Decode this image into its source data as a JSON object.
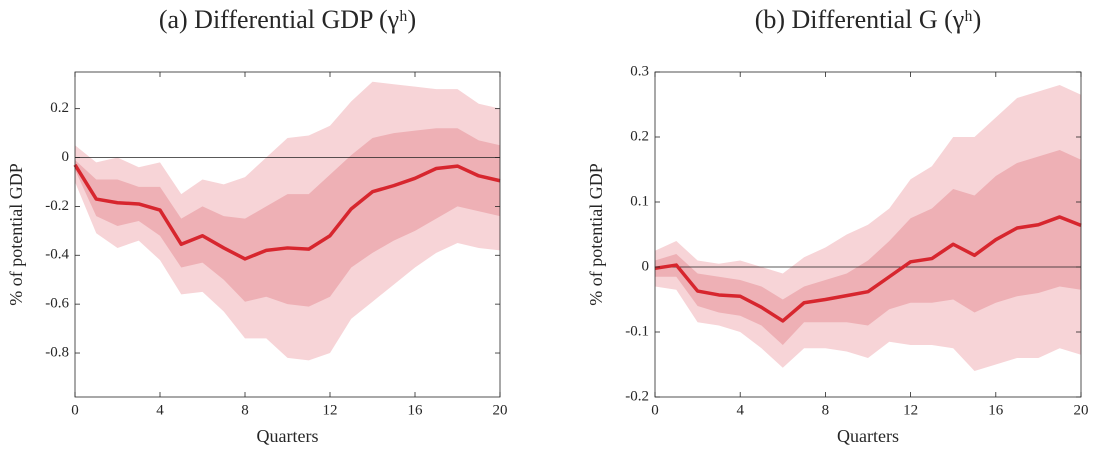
{
  "chart_data": [
    {
      "type": "line",
      "title": "(a) Differential GDP (γʰ)",
      "x_label": "Quarters",
      "y_label": "% of potential GDP",
      "x": [
        0,
        1,
        2,
        3,
        4,
        5,
        6,
        7,
        8,
        9,
        10,
        11,
        12,
        13,
        14,
        15,
        16,
        17,
        18,
        19,
        20
      ],
      "values": [
        -0.03,
        -0.17,
        -0.185,
        -0.19,
        -0.215,
        -0.355,
        -0.32,
        -0.37,
        -0.415,
        -0.38,
        -0.37,
        -0.375,
        -0.32,
        -0.21,
        -0.14,
        -0.115,
        -0.085,
        -0.045,
        -0.035,
        -0.075,
        -0.095
      ],
      "color": "#d7262e",
      "bands": [
        {
          "color": "#f7d4d7",
          "upper": [
            0.05,
            -0.02,
            0.0,
            -0.04,
            -0.02,
            -0.15,
            -0.09,
            -0.11,
            -0.08,
            0.0,
            0.08,
            0.09,
            0.13,
            0.23,
            0.31,
            0.3,
            0.29,
            0.28,
            0.28,
            0.22,
            0.2
          ],
          "lower": [
            -0.1,
            -0.31,
            -0.37,
            -0.34,
            -0.42,
            -0.56,
            -0.55,
            -0.63,
            -0.74,
            -0.74,
            -0.82,
            -0.83,
            -0.8,
            -0.66,
            -0.59,
            -0.52,
            -0.45,
            -0.39,
            -0.35,
            -0.37,
            -0.38
          ]
        },
        {
          "color": "#eeb0b5",
          "upper": [
            -0.01,
            -0.09,
            -0.09,
            -0.12,
            -0.12,
            -0.25,
            -0.2,
            -0.24,
            -0.25,
            -0.2,
            -0.15,
            -0.15,
            -0.07,
            0.01,
            0.08,
            0.1,
            0.11,
            0.12,
            0.12,
            0.07,
            0.05
          ],
          "lower": [
            -0.05,
            -0.24,
            -0.28,
            -0.26,
            -0.32,
            -0.45,
            -0.43,
            -0.5,
            -0.59,
            -0.57,
            -0.6,
            -0.61,
            -0.57,
            -0.45,
            -0.39,
            -0.34,
            -0.3,
            -0.25,
            -0.2,
            -0.22,
            -0.24
          ]
        }
      ],
      "xlim": [
        0,
        20
      ],
      "xticks": [
        0,
        4,
        8,
        12,
        16,
        20
      ],
      "ylim": [
        -0.98,
        0.35
      ],
      "yticks": [
        -0.8,
        -0.6,
        -0.4,
        -0.2,
        0,
        0.2
      ]
    },
    {
      "type": "line",
      "title": "(b) Differential G (γʰ)",
      "x_label": "Quarters",
      "y_label": "% of potential GDP",
      "x": [
        0,
        1,
        2,
        3,
        4,
        5,
        6,
        7,
        8,
        9,
        10,
        11,
        12,
        13,
        14,
        15,
        16,
        17,
        18,
        19,
        20
      ],
      "values": [
        -0.002,
        0.003,
        -0.037,
        -0.043,
        -0.045,
        -0.062,
        -0.083,
        -0.055,
        -0.05,
        -0.044,
        -0.038,
        -0.015,
        0.008,
        0.013,
        0.035,
        0.018,
        0.042,
        0.06,
        0.065,
        0.077,
        0.064
      ],
      "color": "#d7262e",
      "bands": [
        {
          "color": "#f7d4d7",
          "upper": [
            0.025,
            0.04,
            0.01,
            0.005,
            0.01,
            0.0,
            -0.01,
            0.015,
            0.03,
            0.05,
            0.065,
            0.09,
            0.135,
            0.155,
            0.2,
            0.2,
            0.23,
            0.26,
            0.27,
            0.28,
            0.265
          ],
          "lower": [
            -0.03,
            -0.035,
            -0.085,
            -0.09,
            -0.1,
            -0.125,
            -0.155,
            -0.125,
            -0.125,
            -0.13,
            -0.14,
            -0.115,
            -0.12,
            -0.12,
            -0.125,
            -0.16,
            -0.15,
            -0.14,
            -0.14,
            -0.125,
            -0.135
          ]
        },
        {
          "color": "#eeb0b5",
          "upper": [
            0.01,
            0.02,
            -0.01,
            -0.015,
            -0.02,
            -0.03,
            -0.05,
            -0.03,
            -0.02,
            -0.01,
            0.01,
            0.04,
            0.075,
            0.09,
            0.12,
            0.11,
            0.14,
            0.16,
            0.17,
            0.18,
            0.165
          ],
          "lower": [
            -0.015,
            -0.015,
            -0.06,
            -0.07,
            -0.075,
            -0.09,
            -0.12,
            -0.085,
            -0.085,
            -0.085,
            -0.09,
            -0.065,
            -0.055,
            -0.055,
            -0.05,
            -0.07,
            -0.055,
            -0.045,
            -0.04,
            -0.03,
            -0.035
          ]
        }
      ],
      "xlim": [
        0,
        20
      ],
      "xticks": [
        0,
        4,
        8,
        12,
        16,
        20
      ],
      "ylim": [
        -0.2,
        0.3
      ],
      "yticks": [
        -0.2,
        -0.1,
        0,
        0.1,
        0.2,
        0.3
      ]
    }
  ]
}
